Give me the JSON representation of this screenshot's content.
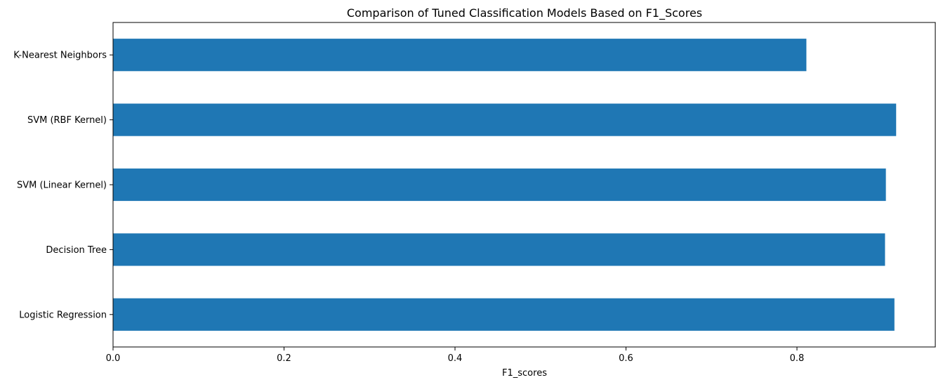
{
  "chart_data": {
    "type": "bar",
    "orientation": "horizontal",
    "title": "Comparison of Tuned Classification Models Based on F1_Scores",
    "xlabel": "F1_scores",
    "ylabel": "",
    "categories": [
      "Logistic Regression",
      "Decision Tree",
      "SVM (Linear Kernel)",
      "SVM (RBF Kernel)",
      "K-Nearest Neighbors"
    ],
    "values": [
      0.914,
      0.903,
      0.904,
      0.916,
      0.811
    ],
    "xlim": [
      0,
      0.9618
    ],
    "xticks": [
      0.0,
      0.2,
      0.4,
      0.6,
      0.8
    ],
    "xtick_labels": [
      "0.0",
      "0.2",
      "0.4",
      "0.6",
      "0.8"
    ],
    "bar_color": "#1f77b4",
    "grid": false,
    "legend": "none"
  }
}
